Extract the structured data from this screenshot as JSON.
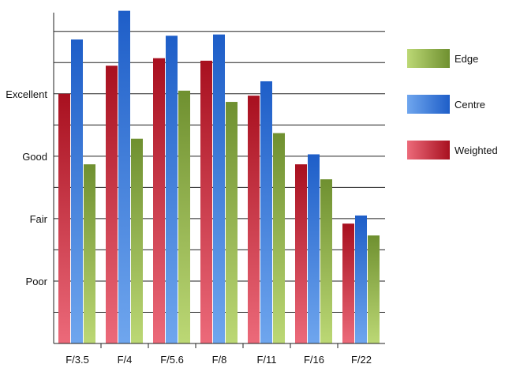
{
  "chart_data": {
    "type": "bar",
    "title": "",
    "xlabel": "",
    "ylabel": "",
    "categories": [
      "F/3.5",
      "F/4",
      "F/5.6",
      "F/8",
      "F/11",
      "F/16",
      "F/22"
    ],
    "y_tick_labels": [
      {
        "label": "Poor",
        "value": 1
      },
      {
        "label": "Fair",
        "value": 2
      },
      {
        "label": "Good",
        "value": 3
      },
      {
        "label": "Excellent",
        "value": 4
      }
    ],
    "ylim": [
      0,
      5.3
    ],
    "gridlines_every": 0.5,
    "grid": true,
    "legend_position": "right",
    "series": [
      {
        "name": "Weighted",
        "color_top": "#a8101f",
        "color_bottom": "#ec6a7a",
        "values": [
          4.0,
          4.45,
          4.57,
          4.53,
          3.97,
          2.87,
          1.92
        ]
      },
      {
        "name": "Centre",
        "color_top": "#1e5ec8",
        "color_bottom": "#6fa6ee",
        "values": [
          4.87,
          5.33,
          4.93,
          4.95,
          4.2,
          3.03,
          2.05
        ]
      },
      {
        "name": "Edge",
        "color_top": "#6f9030",
        "color_bottom": "#bcd875",
        "values": [
          2.87,
          3.28,
          4.05,
          3.87,
          3.37,
          2.63,
          1.73
        ]
      }
    ],
    "legend_order": [
      "Edge",
      "Centre",
      "Weighted"
    ]
  }
}
